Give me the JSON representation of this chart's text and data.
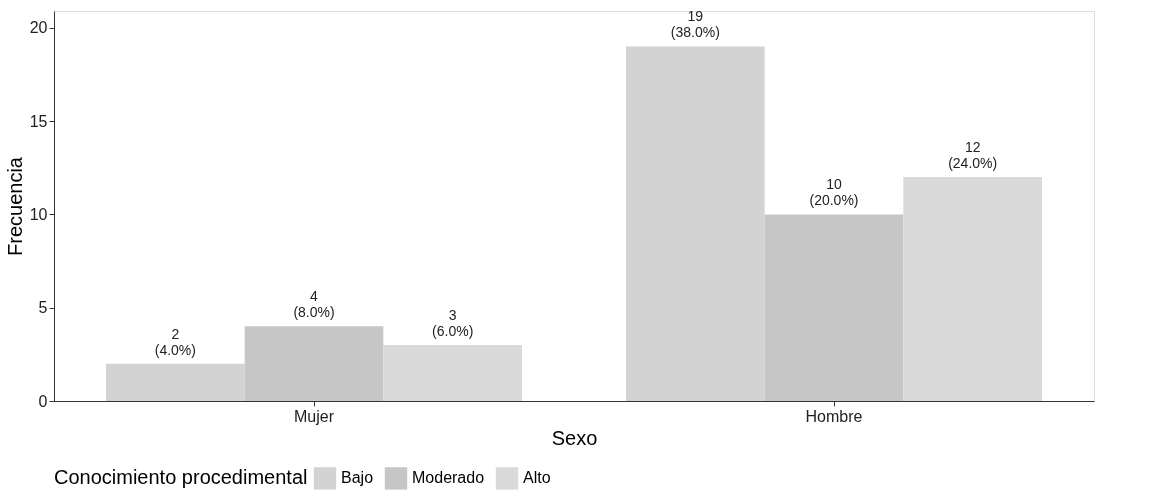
{
  "chart_data": {
    "type": "bar",
    "xlabel": "Sexo",
    "ylabel": "Frecuencia",
    "legend_title": "Conocimiento procedimental",
    "categories": [
      "Mujer",
      "Hombre"
    ],
    "series": [
      {
        "name": "Bajo",
        "color": "#d3d3d3",
        "values": [
          2,
          19
        ],
        "value_labels": [
          "2\n(4.0%)",
          "19\n(38.0%)"
        ]
      },
      {
        "name": "Moderado",
        "color": "#c6c6c6",
        "values": [
          4,
          10
        ],
        "value_labels": [
          "4\n(8.0%)",
          "10\n(20.0%)"
        ]
      },
      {
        "name": "Alto",
        "color": "#d9d9d9",
        "values": [
          3,
          12
        ],
        "value_labels": [
          "3\n(6.0%)",
          "12\n(24.0%)"
        ]
      }
    ],
    "ylim": [
      0,
      20.9
    ],
    "yticks": [
      0,
      5,
      10,
      15,
      20
    ],
    "grid": false,
    "legend": "bottom"
  }
}
